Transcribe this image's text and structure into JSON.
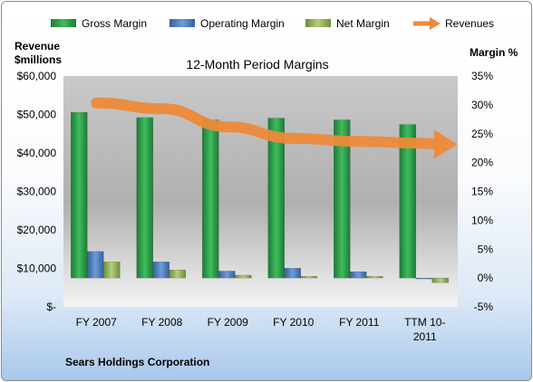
{
  "chart_data": {
    "type": "bar",
    "title": "12-Month Period Margins",
    "company": "Sears Holdings Corporation",
    "left_axis_label": [
      "Revenue",
      "$millions"
    ],
    "right_axis_label": "Margin %",
    "categories": [
      [
        "FY 2007"
      ],
      [
        "FY 2008"
      ],
      [
        "FY 2009"
      ],
      [
        "FY 2010"
      ],
      [
        "FY 2011"
      ],
      [
        "TTM 10-",
        "2011"
      ]
    ],
    "left_ticks": [
      "$-",
      "$10,000",
      "$20,000",
      "$30,000",
      "$40,000",
      "$50,000",
      "$60,000"
    ],
    "left_ylim": [
      0,
      60000
    ],
    "right_ticks": [
      "-5%",
      "0%",
      "5%",
      "10%",
      "15%",
      "20%",
      "25%",
      "30%",
      "35%"
    ],
    "right_ylim": [
      -5,
      35
    ],
    "legend_position": "top",
    "series": [
      {
        "name": "Gross Margin",
        "axis": "right",
        "kind": "bar",
        "color": "#2e9c48",
        "values": [
          28.7,
          27.8,
          27.4,
          27.7,
          27.4,
          26.6
        ]
      },
      {
        "name": "Operating Margin",
        "axis": "right",
        "kind": "bar",
        "color": "#4a78b8",
        "values": [
          4.6,
          2.8,
          1.2,
          1.7,
          1.1,
          -0.1
        ]
      },
      {
        "name": "Net Margin",
        "axis": "right",
        "kind": "bar",
        "color": "#93b15a",
        "values": [
          2.8,
          1.4,
          0.5,
          0.3,
          0.3,
          -0.8
        ]
      },
      {
        "name": "Revenues",
        "axis": "left",
        "kind": "line",
        "color": "#ec8a3a",
        "values": [
          53000,
          51500,
          46800,
          43800,
          43000,
          42500
        ]
      }
    ]
  }
}
